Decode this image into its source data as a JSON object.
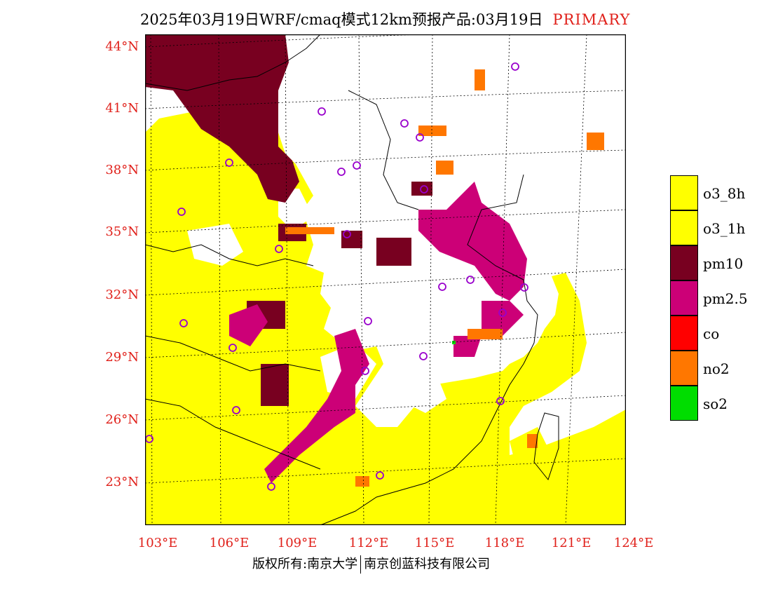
{
  "title": {
    "main": "2025年03月19日WRF/cmaq模式12km预报产品:03月19日",
    "tag": "PRIMARY"
  },
  "map": {
    "lat_ticks": [
      "44°N",
      "41°N",
      "38°N",
      "35°N",
      "32°N",
      "29°N",
      "26°N",
      "23°N"
    ],
    "lon_ticks": [
      "103°E",
      "106°E",
      "109°E",
      "112°E",
      "115°E",
      "118°E",
      "121°E",
      "124°E"
    ]
  },
  "legend": [
    {
      "label": "o3_8h",
      "color": "#ffff00"
    },
    {
      "label": "o3_1h",
      "color": "#ffff00"
    },
    {
      "label": "pm10",
      "color": "#780020"
    },
    {
      "label": "pm2.5",
      "color": "#cc0077"
    },
    {
      "label": "co",
      "color": "#ff0000"
    },
    {
      "label": "no2",
      "color": "#ff7700"
    },
    {
      "label": "so2",
      "color": "#00dd00"
    }
  ],
  "footer": {
    "left": "版权所有:南京大学",
    "right": "南京创蓝科技有限公司"
  }
}
